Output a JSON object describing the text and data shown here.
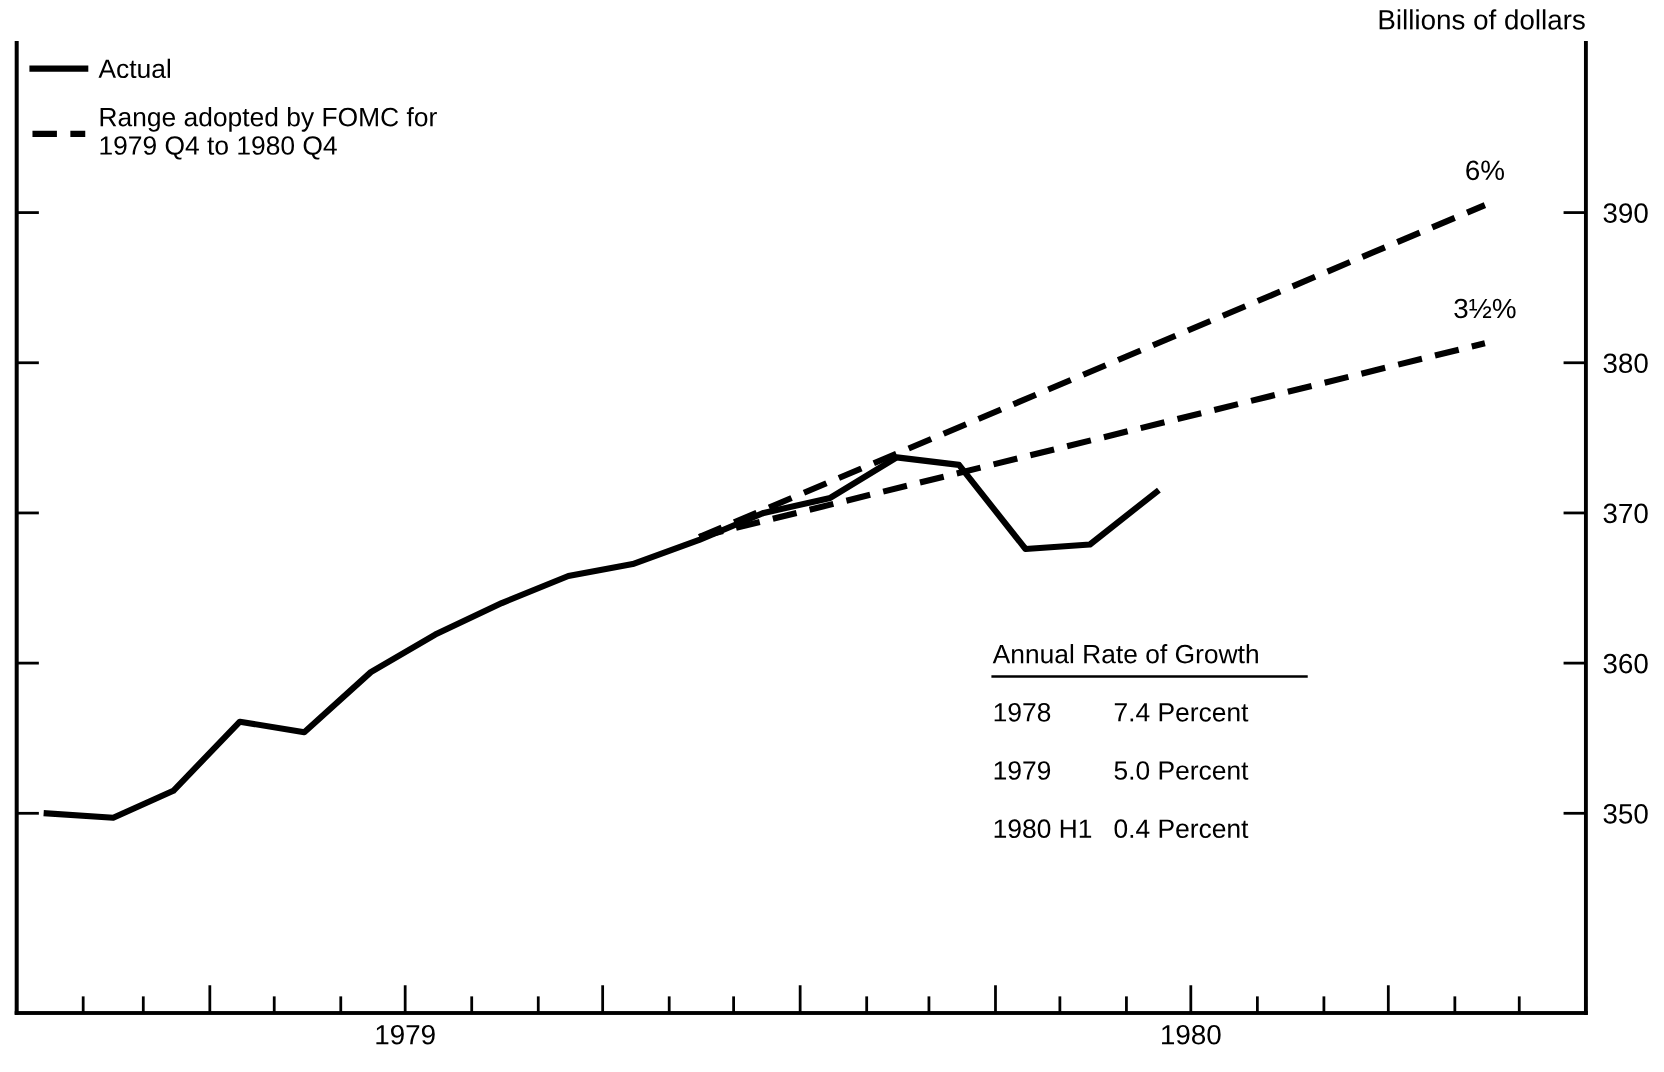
{
  "chart_data": {
    "type": "line",
    "y2label": "Billions of dollars",
    "series": [
      {
        "name": "Actual",
        "color": "#000000",
        "line_style": "solid",
        "axis": "y2",
        "x": [
          "1979-01-15",
          "1979-02-15",
          "1979-03-15",
          "1979-04-15",
          "1979-05-15",
          "1979-06-15",
          "1979-07-15",
          "1979-08-15",
          "1979-09-15",
          "1979-10-15",
          "1979-11-15",
          "1979-12-15",
          "1980-01-15",
          "1980-02-15",
          "1980-03-15",
          "1980-04-15",
          "1980-05-15",
          "1980-06-15"
        ],
        "values": [
          350.0,
          349.7,
          351.5,
          356.1,
          355.4,
          359.4,
          361.9,
          364.0,
          365.8,
          366.6,
          368.2,
          370.0,
          371.0,
          373.7,
          373.2,
          367.6,
          367.9,
          371.4
        ]
      },
      {
        "name": "Range adopted by FOMC for\n1979 Q4 to 1980 Q4",
        "color": "#000000",
        "line_style": "dashed",
        "axis": "y2",
        "x": [
          "1979-11-15",
          "1980-11-15"
        ],
        "values": [
          368.4,
          390.5
        ]
      },
      {
        "color": "#000000",
        "line_style": "dashed",
        "axis": "y2",
        "x": [
          "1979-11-15",
          "1980-11-15"
        ],
        "values": [
          368.4,
          381.3
        ]
      }
    ],
    "annotations": [
      "6%",
      "3½%",
      "Annual Rate of Growth",
      "1978",
      "7.4 Percent",
      "1979",
      "5.0 Percent",
      "1980 H1",
      "0.4 Percent"
    ],
    "xlim": [
      "1979-01-01",
      "1981-01-01"
    ],
    "xticks": [
      {
        "value": "1979-01-01",
        "label": null
      },
      {
        "value": "1979-02-01",
        "label": null
      },
      {
        "value": "1979-03-01",
        "label": null
      },
      {
        "value": "1979-04-01",
        "label": null
      },
      {
        "value": "1979-05-01",
        "label": null
      },
      {
        "value": "1979-06-01",
        "label": null
      },
      {
        "value": "1979-07-01",
        "label": "1979"
      },
      {
        "value": "1979-08-01",
        "label": null
      },
      {
        "value": "1979-09-01",
        "label": null
      },
      {
        "value": "1979-10-01",
        "label": null
      },
      {
        "value": "1979-11-01",
        "label": null
      },
      {
        "value": "1979-12-01",
        "label": null
      },
      {
        "value": "1980-01-01",
        "label": null
      },
      {
        "value": "1980-02-01",
        "label": null
      },
      {
        "value": "1980-03-01",
        "label": null
      },
      {
        "value": "1980-04-01",
        "label": null
      },
      {
        "value": "1980-05-01",
        "label": null
      },
      {
        "value": "1980-06-01",
        "label": null
      },
      {
        "value": "1980-07-01",
        "label": "1980"
      },
      {
        "value": "1980-08-01",
        "label": null
      },
      {
        "value": "1980-09-01",
        "label": null
      },
      {
        "value": "1980-10-01",
        "label": null
      },
      {
        "value": "1980-11-01",
        "label": null
      },
      {
        "value": "1980-12-01",
        "label": null
      },
      {
        "value": "1981-01-01",
        "label": null
      }
    ],
    "y2lim": [
      336.7,
      401.3
    ],
    "y2ticks": [
      350,
      360,
      370,
      380,
      390
    ],
    "grid": false,
    "legend": "top left"
  }
}
